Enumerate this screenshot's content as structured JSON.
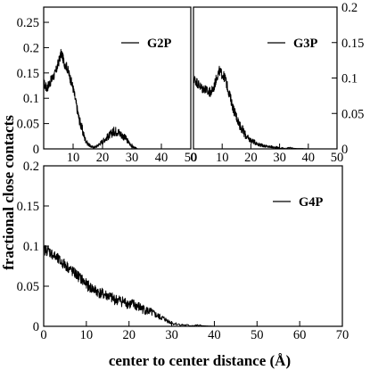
{
  "figure": {
    "ylabel": "fractional close contacts",
    "xlabel": "center to center distance (Å)"
  },
  "chart_data": [
    {
      "id": "g2p",
      "type": "line",
      "legend": "G2P",
      "legend_position": "top-right",
      "xlim": [
        0,
        50
      ],
      "ylim": [
        0,
        0.28
      ],
      "xticks": [
        10,
        20,
        30,
        40,
        50
      ],
      "yticks": [
        0,
        0.05,
        0.1,
        0.15,
        0.2,
        0.25
      ],
      "ytick_labels": [
        "0",
        "0.05",
        "0.1",
        "0.15",
        "0.2",
        "0.25"
      ],
      "y_axis_side": "left",
      "series": [
        {
          "x": [
            0,
            1,
            2,
            3,
            4,
            5,
            6,
            7,
            8,
            9,
            10,
            11,
            12,
            13,
            14,
            15,
            16,
            17,
            18,
            19,
            20,
            21,
            22,
            23,
            24,
            25,
            26,
            27,
            28,
            29,
            30,
            31,
            32
          ],
          "y": [
            0.13,
            0.12,
            0.13,
            0.14,
            0.15,
            0.17,
            0.19,
            0.17,
            0.16,
            0.14,
            0.12,
            0.09,
            0.06,
            0.04,
            0.02,
            0.01,
            0.005,
            0.003,
            0.005,
            0.01,
            0.015,
            0.02,
            0.025,
            0.03,
            0.035,
            0.035,
            0.03,
            0.025,
            0.02,
            0.012,
            0.005,
            0.002,
            0
          ]
        }
      ]
    },
    {
      "id": "g3p",
      "type": "line",
      "legend": "G3P",
      "legend_position": "top-right",
      "xlim": [
        0,
        50
      ],
      "ylim": [
        0,
        0.2
      ],
      "xticks": [
        0,
        10,
        20,
        30,
        40,
        50
      ],
      "yticks": [
        0,
        0.05,
        0.1,
        0.15,
        0.2
      ],
      "ytick_labels": [
        "0",
        "0.05",
        "0.1",
        "0.15",
        "0.2"
      ],
      "y_axis_side": "right",
      "series": [
        {
          "x": [
            0,
            1,
            2,
            3,
            4,
            5,
            6,
            7,
            8,
            9,
            10,
            11,
            12,
            13,
            14,
            15,
            16,
            17,
            18,
            19,
            20,
            21,
            22,
            23,
            24,
            25,
            26,
            27,
            28,
            29,
            30,
            32,
            34,
            36,
            38,
            40
          ],
          "y": [
            0.1,
            0.095,
            0.09,
            0.085,
            0.085,
            0.08,
            0.08,
            0.085,
            0.1,
            0.11,
            0.105,
            0.1,
            0.085,
            0.07,
            0.055,
            0.045,
            0.035,
            0.027,
            0.02,
            0.015,
            0.012,
            0.01,
            0.008,
            0.006,
            0.005,
            0.004,
            0.003,
            0.003,
            0.002,
            0.002,
            0.001,
            0.001,
            0.001,
            0.0005,
            0.0005,
            0
          ]
        }
      ]
    },
    {
      "id": "g4p",
      "type": "line",
      "legend": "G4P",
      "legend_position": "top-right",
      "xlim": [
        0,
        70
      ],
      "ylim": [
        0,
        0.2
      ],
      "xticks": [
        0,
        10,
        20,
        30,
        40,
        50,
        60,
        70
      ],
      "yticks": [
        0,
        0.05,
        0.1,
        0.15,
        0.2
      ],
      "ytick_labels": [
        "0",
        "0.05",
        "0.1",
        "0.15",
        "0.2"
      ],
      "y_axis_side": "left",
      "series": [
        {
          "x": [
            0,
            1,
            2,
            3,
            4,
            5,
            6,
            7,
            8,
            9,
            10,
            11,
            12,
            13,
            14,
            15,
            16,
            17,
            18,
            19,
            20,
            21,
            22,
            23,
            24,
            25,
            26,
            27,
            28,
            29,
            30,
            32,
            34,
            36,
            38,
            40
          ],
          "y": [
            0.095,
            0.095,
            0.09,
            0.085,
            0.08,
            0.077,
            0.072,
            0.067,
            0.063,
            0.058,
            0.052,
            0.048,
            0.045,
            0.042,
            0.04,
            0.038,
            0.035,
            0.033,
            0.032,
            0.03,
            0.028,
            0.027,
            0.025,
            0.022,
            0.02,
            0.018,
            0.015,
            0.012,
            0.01,
            0.007,
            0.004,
            0.002,
            0.001,
            0.001,
            0.0005,
            0
          ]
        }
      ]
    }
  ]
}
